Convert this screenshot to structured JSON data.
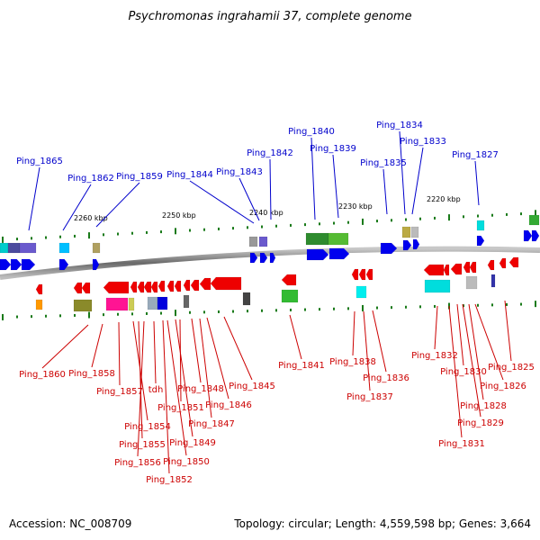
{
  "title": "Psychromonas ingrahamii 37, complete genome",
  "footer": {
    "accession": "Accession: NC_008709",
    "topology": "Topology: circular; Length: 4,559,598 bp; Genes: 3,664"
  },
  "colors": {
    "forward_label": "#0000cc",
    "reverse_label": "#cc0000",
    "backbone": "#7f7f7f",
    "tick": "#1a7a1a"
  },
  "scale_labels": [
    "2260 kbp",
    "2250 kbp",
    "2240 kbp",
    "2230 kbp",
    "2220 kbp"
  ],
  "top_genes": [
    "Ping_1865",
    "Ping_1862",
    "Ping_1859",
    "Ping_1844",
    "Ping_1843",
    "Ping_1842",
    "Ping_1840",
    "Ping_1839",
    "Ping_1835",
    "Ping_1834",
    "Ping_1833",
    "Ping_1827"
  ],
  "bottom_genes": [
    "Ping_1860",
    "Ping_1858",
    "Ping_1857",
    "tdh",
    "Ping_1854",
    "Ping_1855",
    "Ping_1856",
    "Ping_1852",
    "Ping_1850",
    "Ping_1849",
    "Ping_1851",
    "Ping_1848",
    "Ping_1847",
    "Ping_1846",
    "Ping_1845",
    "Ping_1841",
    "Ping_1838",
    "Ping_1837",
    "Ping_1836",
    "Ping_1832",
    "Ping_1831",
    "Ping_1830",
    "Ping_1829",
    "Ping_1828",
    "Ping_1826",
    "Ping_1825"
  ]
}
